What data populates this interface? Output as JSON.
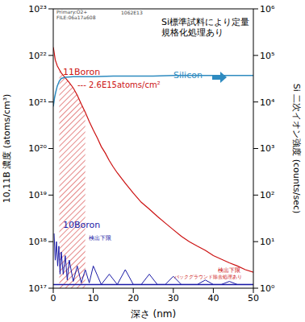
{
  "chart_data": {
    "type": "line",
    "header": [
      "Primary:O2+",
      "FILE:06a17a608",
      "1062E13"
    ],
    "note": [
      "Si標準試料により定量",
      "規格化処理あり"
    ],
    "x_label": "深さ (nm)",
    "y_label": "10,11B 濃度 (atoms/cm³)",
    "y2_label": "Si 二次イオン強度 (counts/sec)",
    "log": "y",
    "grid": false,
    "xlim": [
      0,
      50
    ],
    "xticks": [
      0,
      10,
      20,
      30,
      40,
      50
    ],
    "ylim": [
      1e+17,
      1e+23
    ],
    "yticks": [
      {
        "value": 1e+17,
        "label": "10¹⁷"
      },
      {
        "value": 1e+18,
        "label": "10¹⁸"
      },
      {
        "value": 1e+19,
        "label": "10¹⁹"
      },
      {
        "value": 1e+20,
        "label": "10²⁰"
      },
      {
        "value": 1e+21,
        "label": "10²¹"
      },
      {
        "value": 1e+22,
        "label": "10²²"
      },
      {
        "value": 1e+23,
        "label": "10²³"
      }
    ],
    "y2lim": [
      1,
      1000000
    ],
    "y2ticks": [
      {
        "value": 1,
        "label": "10⁰"
      },
      {
        "value": 10,
        "label": "10¹"
      },
      {
        "value": 100,
        "label": "10²"
      },
      {
        "value": 1000,
        "label": "10³"
      },
      {
        "value": 10000,
        "label": "10⁴"
      },
      {
        "value": 100000,
        "label": "10⁵"
      },
      {
        "value": 1000000,
        "label": "10⁶"
      }
    ],
    "series": [
      {
        "name": "11Boron",
        "color": "#cc1111",
        "x": [
          0,
          0.2,
          0.5,
          1,
          1.5,
          2,
          3,
          4,
          5,
          6,
          7,
          8,
          9,
          10,
          11,
          12,
          13,
          14,
          15,
          16,
          18,
          20,
          22,
          24,
          26,
          28,
          30,
          32,
          34,
          36,
          38,
          40,
          42,
          44,
          46,
          48,
          50
        ],
        "values": [
          1.5e+22,
          1.2e+22,
          8e+21,
          6e+21,
          5e+21,
          4.2e+21,
          3.3e+21,
          2.6e+21,
          2e+21,
          1.4e+21,
          9e+20,
          6e+20,
          3.8e+20,
          2.5e+20,
          1.7e+20,
          1.1e+20,
          8e+19,
          5.5e+19,
          4e+19,
          3e+19,
          1.8e+19,
          1.1e+19,
          7e+18,
          5e+18,
          3.5e+18,
          2.5e+18,
          1.8e+18,
          1.3e+18,
          1e+18,
          8e+17,
          6.5e+17,
          5e+17,
          4.2e+17,
          3.5e+17,
          3e+17,
          2.5e+17,
          2.2e+17
        ],
        "dose_label": "--- 2.6E15atoms/cm²",
        "hatched_depth_range": [
          1.5,
          8
        ]
      },
      {
        "name": "10Boron",
        "color": "#1a1aa6",
        "x": [
          0.2,
          0.5,
          0.8,
          1.1,
          1.4,
          1.7,
          2,
          2.5,
          3,
          3.5,
          4,
          5,
          6,
          7,
          8,
          9,
          10,
          12,
          14,
          16,
          18,
          20,
          22,
          24,
          26,
          28,
          30,
          32,
          34,
          36,
          38,
          40,
          42,
          44,
          46,
          48,
          50
        ],
        "values": [
          1.5e+18,
          4e+17,
          1e+18,
          3e+17,
          8e+17,
          2e+17,
          6e+17,
          2e+17,
          5e+17,
          1.5e+17,
          4e+17,
          1.4e+17,
          3e+17,
          1.3e+17,
          2.5e+17,
          1.3e+17,
          3e+17,
          1.2e+17,
          2e+17,
          1.2e+17,
          2.5e+17,
          1.2e+17,
          1.2e+17,
          2e+17,
          1.2e+17,
          1.2e+17,
          1.8e+17,
          1.2e+17,
          1.2e+17,
          1.2e+17,
          1.5e+17,
          1.2e+17,
          1.2e+17,
          1.4e+17,
          1.2e+17,
          1.2e+17,
          1.2e+17
        ]
      },
      {
        "name": "Silicon",
        "color": "#2e8bc0",
        "axis": "y2",
        "x": [
          0,
          0.3,
          0.6,
          1,
          1.5,
          2,
          3,
          5,
          10,
          15,
          20,
          25,
          30,
          35,
          40,
          45,
          50
        ],
        "values": [
          8000,
          12000,
          16000,
          22000,
          28000,
          32000,
          34000,
          35000,
          35000,
          36000,
          36000,
          36000,
          37000,
          37000,
          37000,
          37000,
          37000
        ]
      }
    ],
    "detection_limit": 1.2e+17,
    "annotations": [
      {
        "text": "検出下限",
        "color": "#1a1aa6"
      },
      {
        "text": "検出下限",
        "color": "#cc1111"
      },
      {
        "text": "バックグラウンド除去処理あり",
        "color": "#cc1111"
      }
    ]
  }
}
